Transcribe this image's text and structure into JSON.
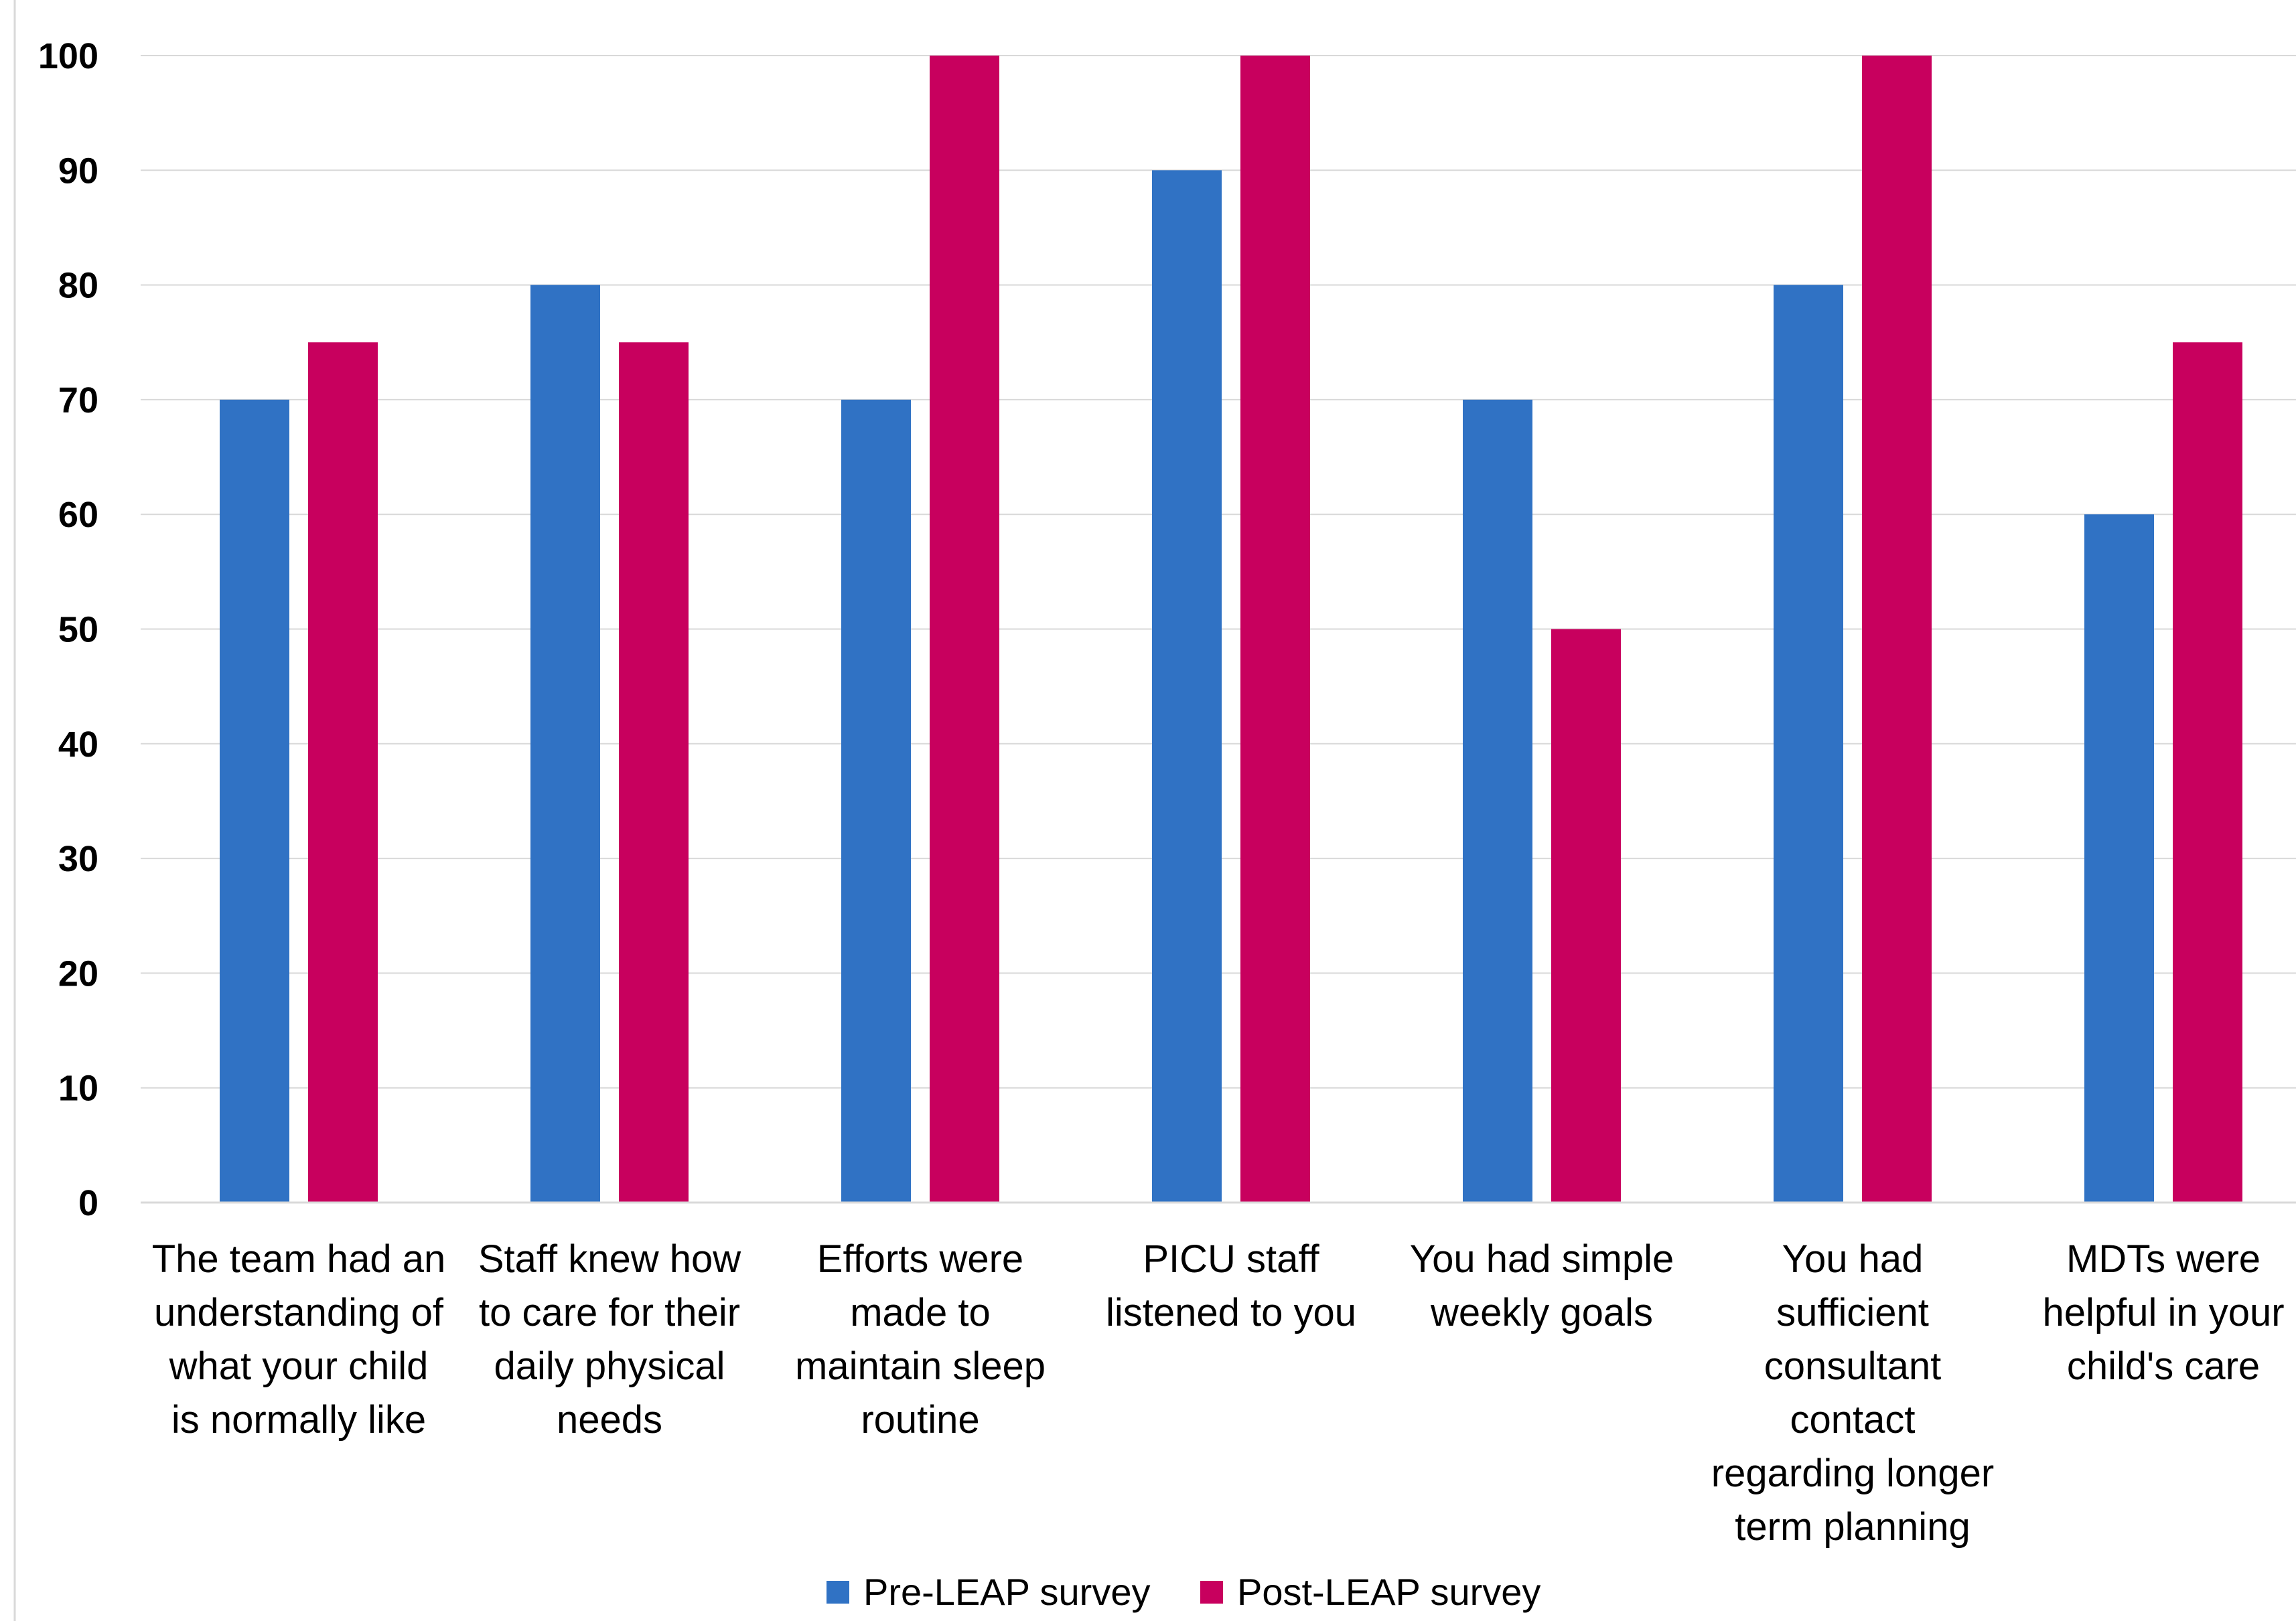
{
  "chart_data": {
    "type": "bar",
    "title": "",
    "xlabel": "",
    "ylabel": "",
    "ylim": [
      0,
      100
    ],
    "yticks": [
      0,
      10,
      20,
      30,
      40,
      50,
      60,
      70,
      80,
      90,
      100
    ],
    "grid": true,
    "legend_position": "bottom",
    "categories": [
      [
        "The team had an",
        "understanding of",
        "what your child",
        "is normally like"
      ],
      [
        "Staff knew how",
        "to care for their",
        "daily physical",
        "needs"
      ],
      [
        "Efforts were",
        "made to",
        "maintain sleep",
        "routine"
      ],
      [
        "PICU staff",
        "listened to you"
      ],
      [
        "You had simple",
        "weekly goals"
      ],
      [
        "You had",
        "sufficient",
        "consultant",
        "contact",
        "regarding longer",
        "term planning"
      ],
      [
        "MDTs were",
        "helpful in your",
        "child's care"
      ]
    ],
    "series": [
      {
        "name": "Pre-LEAP survey",
        "color": "#3072C4",
        "values": [
          70,
          80,
          70,
          90,
          70,
          80,
          60
        ]
      },
      {
        "name": "Post-LEAP survey",
        "color": "#C8005E",
        "values": [
          75,
          75,
          100,
          100,
          50,
          100,
          75
        ]
      }
    ]
  }
}
